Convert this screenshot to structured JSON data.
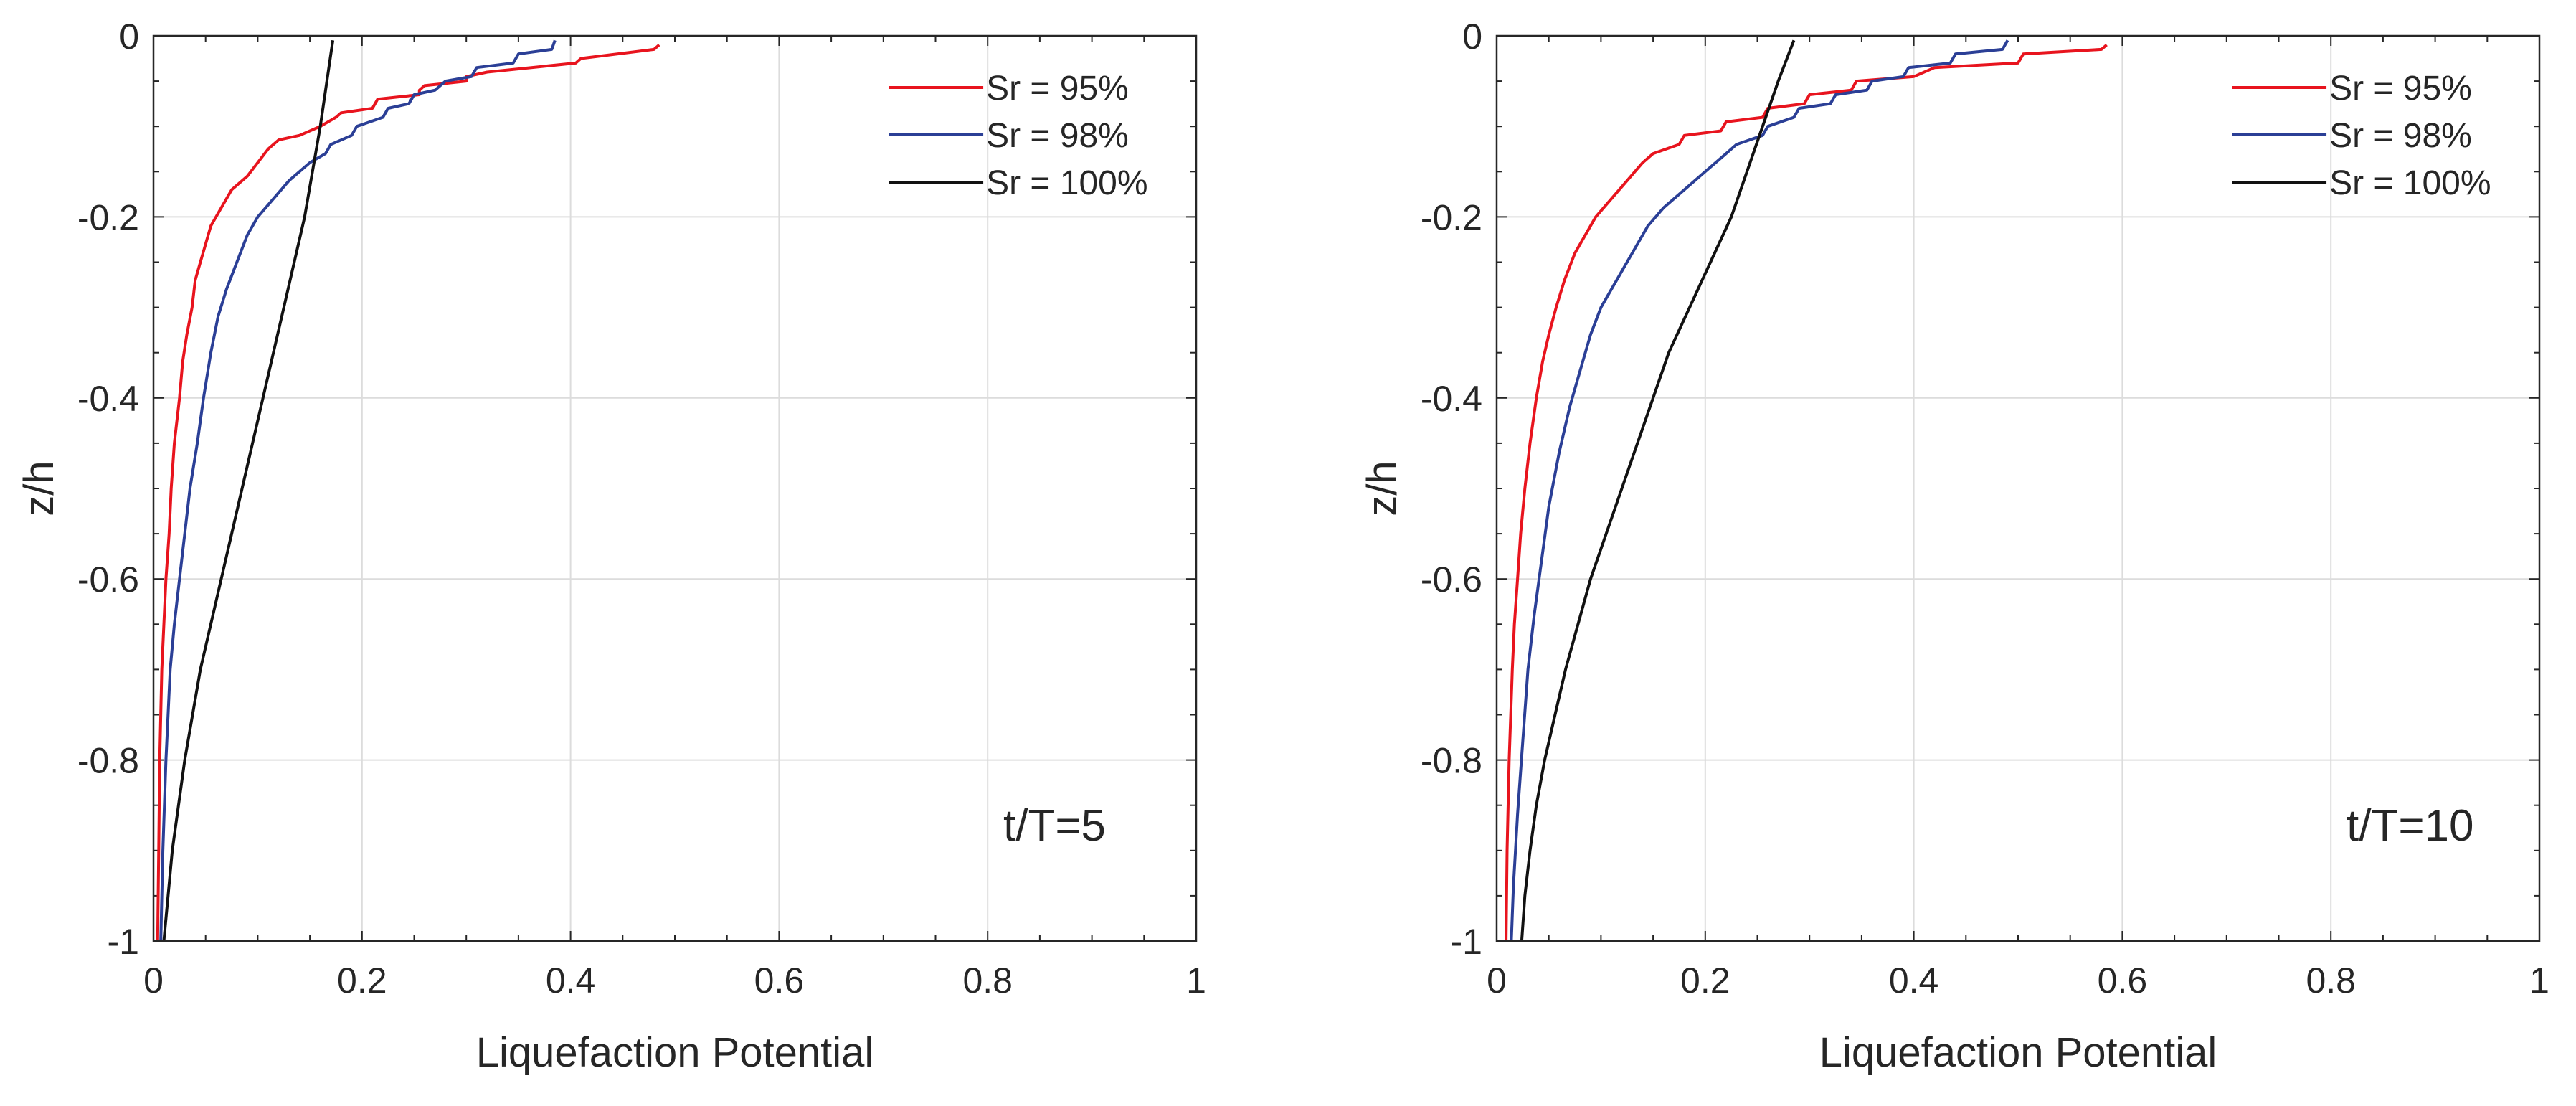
{
  "chart_data": [
    {
      "type": "line",
      "title": "",
      "xlabel": "Liquefaction Potential",
      "ylabel": "z/h",
      "xlim": [
        0,
        1
      ],
      "ylim": [
        -1,
        0
      ],
      "xticks": [
        "0",
        "0.2",
        "0.4",
        "0.6",
        "0.8",
        "1"
      ],
      "yticks": [
        "0",
        "-0.2",
        "-0.4",
        "-0.6",
        "-0.8",
        "-1"
      ],
      "grid": true,
      "legend_position": "top-right",
      "annotation": "t/T=5",
      "series": [
        {
          "name": "Sr = 95%",
          "color": "#e8141e",
          "points": [
            [
              0.485,
              -0.01
            ],
            [
              0.48,
              -0.015
            ],
            [
              0.41,
              -0.025
            ],
            [
              0.405,
              -0.03
            ],
            [
              0.32,
              -0.04
            ],
            [
              0.3,
              -0.045
            ],
            [
              0.3,
              -0.05
            ],
            [
              0.26,
              -0.055
            ],
            [
              0.255,
              -0.06
            ],
            [
              0.255,
              -0.065
            ],
            [
              0.215,
              -0.07
            ],
            [
              0.21,
              -0.08
            ],
            [
              0.18,
              -0.085
            ],
            [
              0.175,
              -0.09
            ],
            [
              0.16,
              -0.1
            ],
            [
              0.14,
              -0.11
            ],
            [
              0.12,
              -0.115
            ],
            [
              0.11,
              -0.125
            ],
            [
              0.1,
              -0.14
            ],
            [
              0.09,
              -0.155
            ],
            [
              0.075,
              -0.17
            ],
            [
              0.065,
              -0.19
            ],
            [
              0.055,
              -0.21
            ],
            [
              0.05,
              -0.23
            ],
            [
              0.045,
              -0.25
            ],
            [
              0.04,
              -0.27
            ],
            [
              0.037,
              -0.3
            ],
            [
              0.032,
              -0.33
            ],
            [
              0.028,
              -0.36
            ],
            [
              0.025,
              -0.4
            ],
            [
              0.02,
              -0.45
            ],
            [
              0.017,
              -0.5
            ],
            [
              0.015,
              -0.55
            ],
            [
              0.012,
              -0.6
            ],
            [
              0.01,
              -0.65
            ],
            [
              0.008,
              -0.7
            ],
            [
              0.006,
              -0.8
            ],
            [
              0.005,
              -0.9
            ],
            [
              0.004,
              -1.0
            ]
          ]
        },
        {
          "name": "Sr = 98%",
          "color": "#2b3f96",
          "points": [
            [
              0.385,
              -0.005
            ],
            [
              0.382,
              -0.015
            ],
            [
              0.35,
              -0.02
            ],
            [
              0.345,
              -0.03
            ],
            [
              0.31,
              -0.035
            ],
            [
              0.305,
              -0.045
            ],
            [
              0.28,
              -0.05
            ],
            [
              0.27,
              -0.06
            ],
            [
              0.25,
              -0.065
            ],
            [
              0.245,
              -0.075
            ],
            [
              0.225,
              -0.08
            ],
            [
              0.22,
              -0.09
            ],
            [
              0.195,
              -0.1
            ],
            [
              0.19,
              -0.11
            ],
            [
              0.17,
              -0.12
            ],
            [
              0.165,
              -0.13
            ],
            [
              0.15,
              -0.14
            ],
            [
              0.13,
              -0.16
            ],
            [
              0.115,
              -0.18
            ],
            [
              0.1,
              -0.2
            ],
            [
              0.09,
              -0.22
            ],
            [
              0.08,
              -0.25
            ],
            [
              0.07,
              -0.28
            ],
            [
              0.062,
              -0.31
            ],
            [
              0.055,
              -0.35
            ],
            [
              0.048,
              -0.4
            ],
            [
              0.042,
              -0.45
            ],
            [
              0.035,
              -0.5
            ],
            [
              0.03,
              -0.55
            ],
            [
              0.025,
              -0.6
            ],
            [
              0.02,
              -0.65
            ],
            [
              0.016,
              -0.7
            ],
            [
              0.012,
              -0.8
            ],
            [
              0.009,
              -0.9
            ],
            [
              0.007,
              -1.0
            ]
          ]
        },
        {
          "name": "Sr = 100%",
          "color": "#111111",
          "points": [
            [
              0.172,
              -0.005
            ],
            [
              0.16,
              -0.1
            ],
            [
              0.145,
              -0.2
            ],
            [
              0.125,
              -0.3
            ],
            [
              0.105,
              -0.4
            ],
            [
              0.085,
              -0.5
            ],
            [
              0.065,
              -0.6
            ],
            [
              0.045,
              -0.7
            ],
            [
              0.03,
              -0.8
            ],
            [
              0.018,
              -0.9
            ],
            [
              0.01,
              -1.0
            ]
          ]
        }
      ]
    },
    {
      "type": "line",
      "title": "",
      "xlabel": "Liquefaction Potential",
      "ylabel": "z/h",
      "xlim": [
        0,
        1
      ],
      "ylim": [
        -1,
        0
      ],
      "xticks": [
        "0",
        "0.2",
        "0.4",
        "0.6",
        "0.8",
        "1"
      ],
      "yticks": [
        "0",
        "-0.2",
        "-0.4",
        "-0.6",
        "-0.8",
        "-1"
      ],
      "grid": true,
      "legend_position": "top-right",
      "annotation": "t/T=10",
      "series": [
        {
          "name": "Sr = 95%",
          "color": "#e8141e",
          "points": [
            [
              0.585,
              -0.01
            ],
            [
              0.58,
              -0.015
            ],
            [
              0.505,
              -0.02
            ],
            [
              0.5,
              -0.03
            ],
            [
              0.42,
              -0.035
            ],
            [
              0.4,
              -0.045
            ],
            [
              0.345,
              -0.05
            ],
            [
              0.34,
              -0.06
            ],
            [
              0.3,
              -0.065
            ],
            [
              0.295,
              -0.075
            ],
            [
              0.26,
              -0.08
            ],
            [
              0.255,
              -0.09
            ],
            [
              0.22,
              -0.095
            ],
            [
              0.215,
              -0.105
            ],
            [
              0.18,
              -0.11
            ],
            [
              0.175,
              -0.12
            ],
            [
              0.15,
              -0.13
            ],
            [
              0.14,
              -0.14
            ],
            [
              0.125,
              -0.16
            ],
            [
              0.11,
              -0.18
            ],
            [
              0.095,
              -0.2
            ],
            [
              0.085,
              -0.22
            ],
            [
              0.075,
              -0.24
            ],
            [
              0.065,
              -0.27
            ],
            [
              0.057,
              -0.3
            ],
            [
              0.05,
              -0.33
            ],
            [
              0.044,
              -0.36
            ],
            [
              0.038,
              -0.4
            ],
            [
              0.032,
              -0.45
            ],
            [
              0.027,
              -0.5
            ],
            [
              0.023,
              -0.55
            ],
            [
              0.02,
              -0.6
            ],
            [
              0.017,
              -0.65
            ],
            [
              0.015,
              -0.7
            ],
            [
              0.012,
              -0.8
            ],
            [
              0.01,
              -0.9
            ],
            [
              0.009,
              -1.0
            ]
          ]
        },
        {
          "name": "Sr = 98%",
          "color": "#2b3f96",
          "points": [
            [
              0.49,
              -0.005
            ],
            [
              0.485,
              -0.015
            ],
            [
              0.44,
              -0.02
            ],
            [
              0.435,
              -0.03
            ],
            [
              0.395,
              -0.035
            ],
            [
              0.39,
              -0.045
            ],
            [
              0.36,
              -0.05
            ],
            [
              0.355,
              -0.06
            ],
            [
              0.325,
              -0.065
            ],
            [
              0.32,
              -0.075
            ],
            [
              0.29,
              -0.08
            ],
            [
              0.285,
              -0.09
            ],
            [
              0.26,
              -0.1
            ],
            [
              0.255,
              -0.11
            ],
            [
              0.23,
              -0.12
            ],
            [
              0.22,
              -0.13
            ],
            [
              0.2,
              -0.15
            ],
            [
              0.18,
              -0.17
            ],
            [
              0.16,
              -0.19
            ],
            [
              0.145,
              -0.21
            ],
            [
              0.13,
              -0.24
            ],
            [
              0.115,
              -0.27
            ],
            [
              0.1,
              -0.3
            ],
            [
              0.09,
              -0.33
            ],
            [
              0.08,
              -0.37
            ],
            [
              0.07,
              -0.41
            ],
            [
              0.06,
              -0.46
            ],
            [
              0.05,
              -0.52
            ],
            [
              0.043,
              -0.58
            ],
            [
              0.036,
              -0.64
            ],
            [
              0.03,
              -0.7
            ],
            [
              0.025,
              -0.78
            ],
            [
              0.02,
              -0.86
            ],
            [
              0.016,
              -0.94
            ],
            [
              0.014,
              -1.0
            ]
          ]
        },
        {
          "name": "Sr = 100%",
          "color": "#111111",
          "points": [
            [
              0.285,
              -0.005
            ],
            [
              0.27,
              -0.05
            ],
            [
              0.255,
              -0.1
            ],
            [
              0.24,
              -0.15
            ],
            [
              0.225,
              -0.2
            ],
            [
              0.205,
              -0.25
            ],
            [
              0.185,
              -0.3
            ],
            [
              0.165,
              -0.35
            ],
            [
              0.15,
              -0.4
            ],
            [
              0.135,
              -0.45
            ],
            [
              0.12,
              -0.5
            ],
            [
              0.105,
              -0.55
            ],
            [
              0.09,
              -0.6
            ],
            [
              0.078,
              -0.65
            ],
            [
              0.066,
              -0.7
            ],
            [
              0.056,
              -0.75
            ],
            [
              0.046,
              -0.8
            ],
            [
              0.038,
              -0.85
            ],
            [
              0.032,
              -0.9
            ],
            [
              0.027,
              -0.95
            ],
            [
              0.024,
              -1.0
            ]
          ]
        }
      ]
    }
  ]
}
